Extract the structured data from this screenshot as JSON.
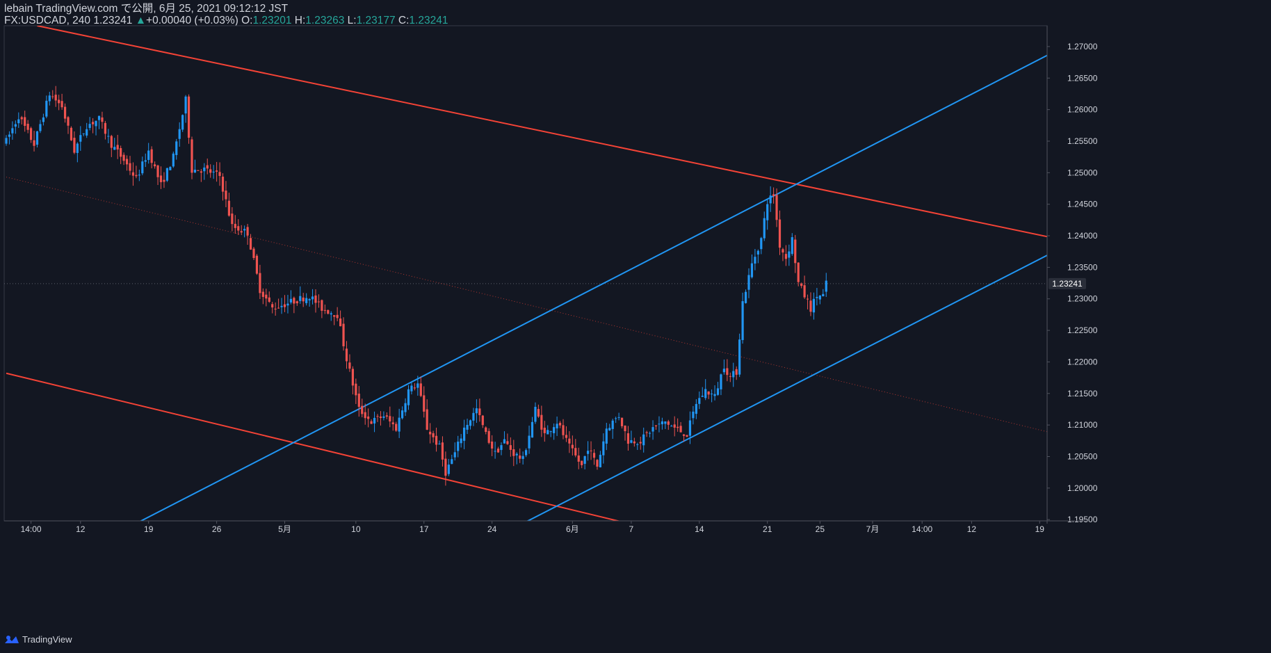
{
  "header": {
    "published": "lebain TradingView.com で公開, 6月 25, 2021 09:12:12 JST",
    "symbol": "FX:USDCAD, 240",
    "last": "1.23241",
    "change_arrow": "▲",
    "change": "+0.00040 (+0.03%)",
    "o_label": "O:",
    "o": "1.23201",
    "h_label": "H:",
    "h": "1.23263",
    "l_label": "L:",
    "l": "1.23177",
    "c_label": "C:",
    "c": "1.23241"
  },
  "footer": {
    "brand": "TradingView"
  },
  "colors": {
    "background": "#131722",
    "up": "#2196f3",
    "down": "#ef5350",
    "channel_red": "#f44336",
    "channel_blue": "#2196f3",
    "axis_text": "#d1d4dc",
    "last_price_bg": "#2a2e39"
  },
  "chart_data": {
    "type": "candlestick",
    "symbol": "FX:USDCAD",
    "interval": "240",
    "ylim": [
      1.1948,
      1.2733
    ],
    "y_ticks": [
      "1.19500",
      "1.20000",
      "1.20500",
      "1.21000",
      "1.21500",
      "1.22000",
      "1.22500",
      "1.23000",
      "1.23500",
      "1.24000",
      "1.24500",
      "1.25000",
      "1.25500",
      "1.26000",
      "1.26500",
      "1.27000"
    ],
    "x_ticks": [
      {
        "label": "14:00",
        "i": 8
      },
      {
        "label": "12",
        "i": 24
      },
      {
        "label": "19",
        "i": 46
      },
      {
        "label": "26",
        "i": 68
      },
      {
        "label": "5月",
        "i": 90
      },
      {
        "label": "10",
        "i": 113
      },
      {
        "label": "17",
        "i": 135
      },
      {
        "label": "24",
        "i": 157
      },
      {
        "label": "6月",
        "i": 183
      },
      {
        "label": "7",
        "i": 202
      },
      {
        "label": "14",
        "i": 224
      },
      {
        "label": "21",
        "i": 246
      },
      {
        "label": "25",
        "i": 263
      },
      {
        "label": "7月",
        "i": 280
      },
      {
        "label": "14:00",
        "i": 296
      },
      {
        "label": "12",
        "i": 312
      },
      {
        "label": "19",
        "i": 334
      }
    ],
    "last_price": "1.23241",
    "last_value": 1.23241,
    "anchors": [
      [
        0,
        1.255
      ],
      [
        4,
        1.259
      ],
      [
        9,
        1.2545
      ],
      [
        14,
        1.2625
      ],
      [
        18,
        1.2605
      ],
      [
        22,
        1.2535
      ],
      [
        26,
        1.2575
      ],
      [
        30,
        1.2585
      ],
      [
        34,
        1.2545
      ],
      [
        38,
        1.252
      ],
      [
        42,
        1.249
      ],
      [
        46,
        1.2535
      ],
      [
        50,
        1.248
      ],
      [
        54,
        1.2525
      ],
      [
        58,
        1.2615
      ],
      [
        60,
        1.2505
      ],
      [
        64,
        1.2505
      ],
      [
        69,
        1.2495
      ],
      [
        73,
        1.2415
      ],
      [
        78,
        1.2405
      ],
      [
        82,
        1.2315
      ],
      [
        86,
        1.2285
      ],
      [
        92,
        1.2295
      ],
      [
        98,
        1.2305
      ],
      [
        102,
        1.2285
      ],
      [
        107,
        1.2275
      ],
      [
        110,
        1.2205
      ],
      [
        114,
        1.2125
      ],
      [
        118,
        1.2105
      ],
      [
        122,
        1.2115
      ],
      [
        126,
        1.2095
      ],
      [
        130,
        1.2155
      ],
      [
        133,
        1.2165
      ],
      [
        136,
        1.2095
      ],
      [
        140,
        1.2065
      ],
      [
        142,
        1.2025
      ],
      [
        145,
        1.2055
      ],
      [
        148,
        1.2095
      ],
      [
        152,
        1.2125
      ],
      [
        155,
        1.2085
      ],
      [
        158,
        1.2055
      ],
      [
        161,
        1.2075
      ],
      [
        164,
        1.2055
      ],
      [
        167,
        1.2045
      ],
      [
        171,
        1.2125
      ],
      [
        174,
        1.2085
      ],
      [
        178,
        1.2105
      ],
      [
        182,
        1.2065
      ],
      [
        186,
        1.2035
      ],
      [
        188,
        1.2065
      ],
      [
        191,
        1.2035
      ],
      [
        194,
        1.2095
      ],
      [
        198,
        1.2115
      ],
      [
        201,
        1.2075
      ],
      [
        205,
        1.2075
      ],
      [
        209,
        1.2095
      ],
      [
        213,
        1.2105
      ],
      [
        216,
        1.2095
      ],
      [
        220,
        1.2085
      ],
      [
        223,
        1.2135
      ],
      [
        226,
        1.2155
      ],
      [
        229,
        1.2145
      ],
      [
        232,
        1.2195
      ],
      [
        234,
        1.2175
      ],
      [
        236,
        1.2185
      ],
      [
        238,
        1.2295
      ],
      [
        241,
        1.2355
      ],
      [
        244,
        1.2395
      ],
      [
        246,
        1.2455
      ],
      [
        248,
        1.2465
      ],
      [
        250,
        1.2385
      ],
      [
        252,
        1.2365
      ],
      [
        254,
        1.2395
      ],
      [
        256,
        1.2325
      ],
      [
        258,
        1.2305
      ],
      [
        260,
        1.2285
      ],
      [
        262,
        1.2305
      ],
      [
        264,
        1.2305
      ],
      [
        265,
        1.2324
      ]
    ],
    "channels": [
      {
        "name": "red-upper",
        "color": "#f44336",
        "p1": [
          10,
          1.2733
        ],
        "p2": [
          340,
          1.2395
        ]
      },
      {
        "name": "red-lower",
        "color": "#f44336",
        "p1": [
          0,
          1.2182
        ],
        "p2": [
          201,
          1.1944
        ]
      },
      {
        "name": "red-mid",
        "color": "#f44336",
        "dotted": true,
        "p1": [
          0,
          1.2493
        ],
        "p2": [
          340,
          1.2085
        ]
      },
      {
        "name": "blue-upper",
        "color": "#2196f3",
        "p1": [
          42,
          1.1944
        ],
        "p2": [
          340,
          1.2695
        ]
      },
      {
        "name": "blue-lower",
        "color": "#2196f3",
        "p1": [
          167,
          1.1944
        ],
        "p2": [
          340,
          1.2378
        ]
      }
    ]
  }
}
